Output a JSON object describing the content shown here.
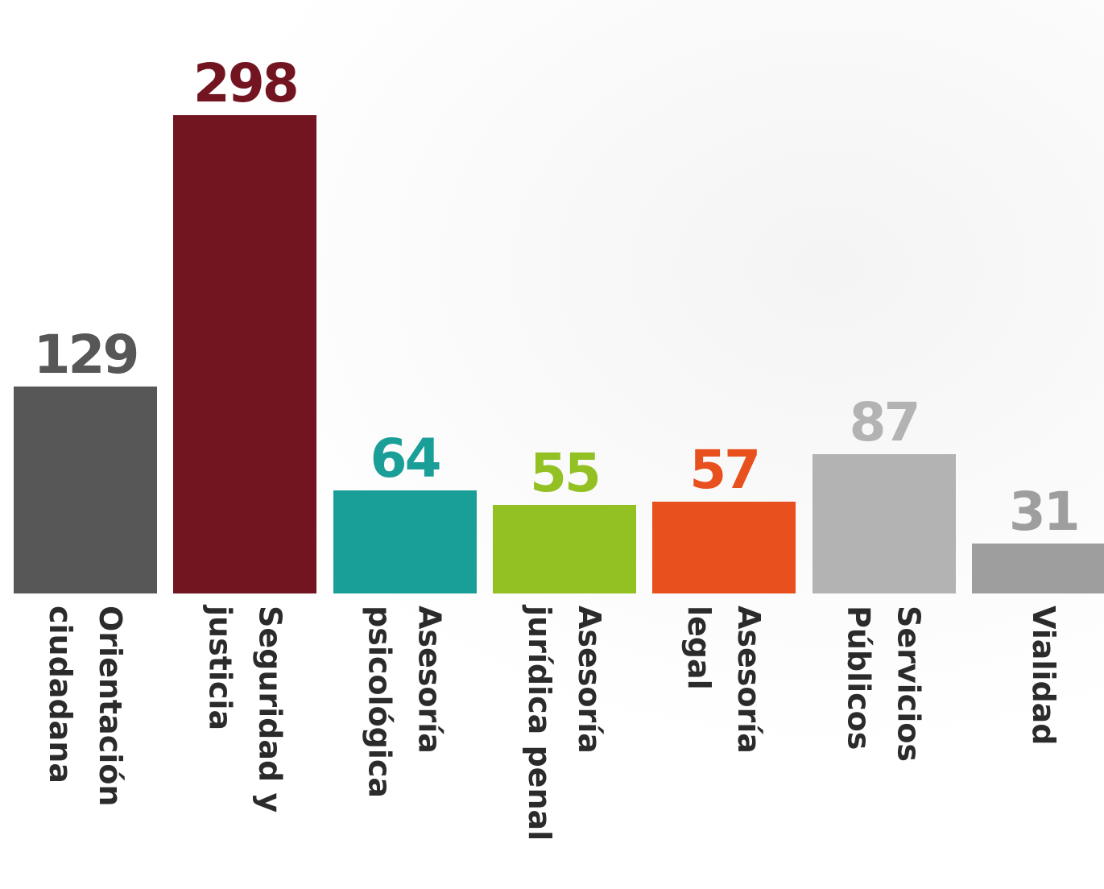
{
  "chart_data": {
    "type": "bar",
    "categories": [
      "Orientación\nciudadana",
      "Seguridad y\njusticia",
      "Asesoría\npsicológica",
      "Asesoría\njurídica penal",
      "Asesoría\nlegal",
      "Servicios\nPúblicos",
      "Vialidad"
    ],
    "values": [
      129,
      298,
      64,
      55,
      57,
      87,
      31
    ],
    "colors": [
      "#575757",
      "#721520",
      "#1a9e98",
      "#93c123",
      "#e8501e",
      "#b3b3b3",
      "#9e9e9e"
    ]
  }
}
